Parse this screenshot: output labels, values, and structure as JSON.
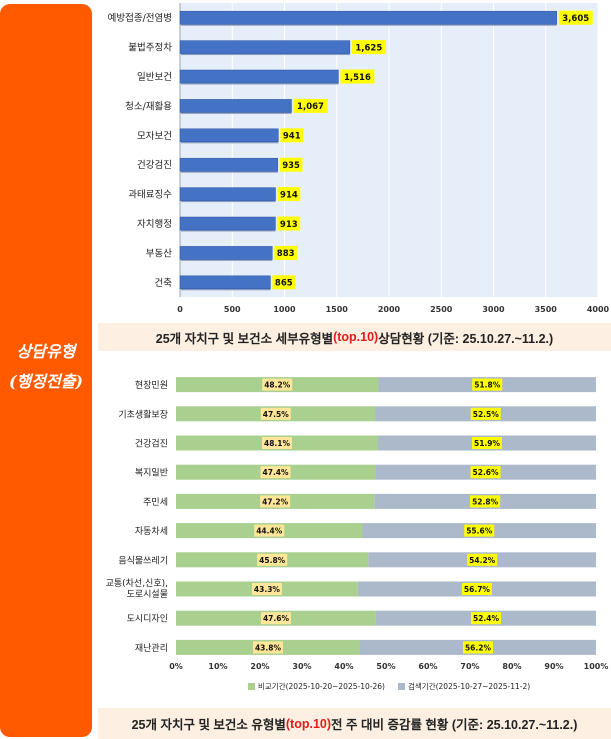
{
  "side_label_line1": "상담유형",
  "side_label_line2": "(행정전출)",
  "caption1": {
    "pre": "25개 자치구 및 보건소 세부유형별",
    "hl": "(top.10)",
    "post": " 상담현황 (기준: 25.10.27.~11.2.)"
  },
  "caption2": {
    "pre": "25개 자치구 및 보건소 유형별",
    "hl": "(top.10)",
    "post": " 전 주 대비 증감률 현황 (기준: 25.10.27.~11.2.)"
  },
  "chart_data": [
    {
      "type": "bar",
      "orientation": "horizontal",
      "categories": [
        "예방접종/전염병",
        "불법주정차",
        "일반보건",
        "청소/재활용",
        "모자보건",
        "건강검진",
        "과태료징수",
        "자치행정",
        "부동산",
        "건축"
      ],
      "values": [
        3605,
        1625,
        1516,
        1067,
        941,
        935,
        914,
        913,
        883,
        865
      ],
      "value_labels": [
        "3,605",
        "1,625",
        "1,516",
        "1,067",
        "941",
        "935",
        "914",
        "913",
        "883",
        "865"
      ],
      "xlim": [
        0,
        4000
      ],
      "xticks": [
        "0",
        "500",
        "1000",
        "1500",
        "2000",
        "2500",
        "3000",
        "3500",
        "4000"
      ],
      "grid": true,
      "colors": {
        "bar": "#4472c4",
        "bar_dark": "#2f55a4",
        "label_bg": "#ffff00",
        "plot_bg": "#e6eef9",
        "grid": "#ffffff"
      }
    },
    {
      "type": "bar",
      "orientation": "horizontal",
      "stacked": "percent",
      "categories": [
        "현장민원",
        "기초생활보장",
        "건강검진",
        "복지일반",
        "주민세",
        "자동차세",
        "음식물쓰레기",
        "교통(차선,신호), 도로시설물",
        "도시디자인",
        "재난관리"
      ],
      "series": [
        {
          "name": "비교기간(2025-10-20~2025-10-26)",
          "values": [
            48.2,
            47.5,
            48.1,
            47.4,
            47.2,
            44.4,
            45.8,
            43.3,
            47.6,
            43.8
          ],
          "labels": [
            "48.2%",
            "47.5%",
            "48.1%",
            "47.4%",
            "47.2%",
            "44.4%",
            "45.8%",
            "43.3%",
            "47.6%",
            "43.8%"
          ]
        },
        {
          "name": "검색기간(2025-10-27~2025-11-2)",
          "values": [
            51.8,
            52.5,
            51.9,
            52.6,
            52.8,
            55.6,
            54.2,
            56.7,
            52.4,
            56.2
          ],
          "labels": [
            "51.8%",
            "52.5%",
            "51.9%",
            "52.6%",
            "52.8%",
            "55.6%",
            "54.2%",
            "56.7%",
            "52.4%",
            "56.2%"
          ]
        }
      ],
      "xticks": [
        "0%",
        "10%",
        "20%",
        "30%",
        "40%",
        "50%",
        "60%",
        "70%",
        "80%",
        "90%",
        "100%"
      ],
      "legend": "bottom",
      "colors": {
        "s1": "#a9d08e",
        "s2": "#acb9ca",
        "label1_bg": "#ffe699",
        "label2_bg": "#ffff00"
      }
    }
  ]
}
